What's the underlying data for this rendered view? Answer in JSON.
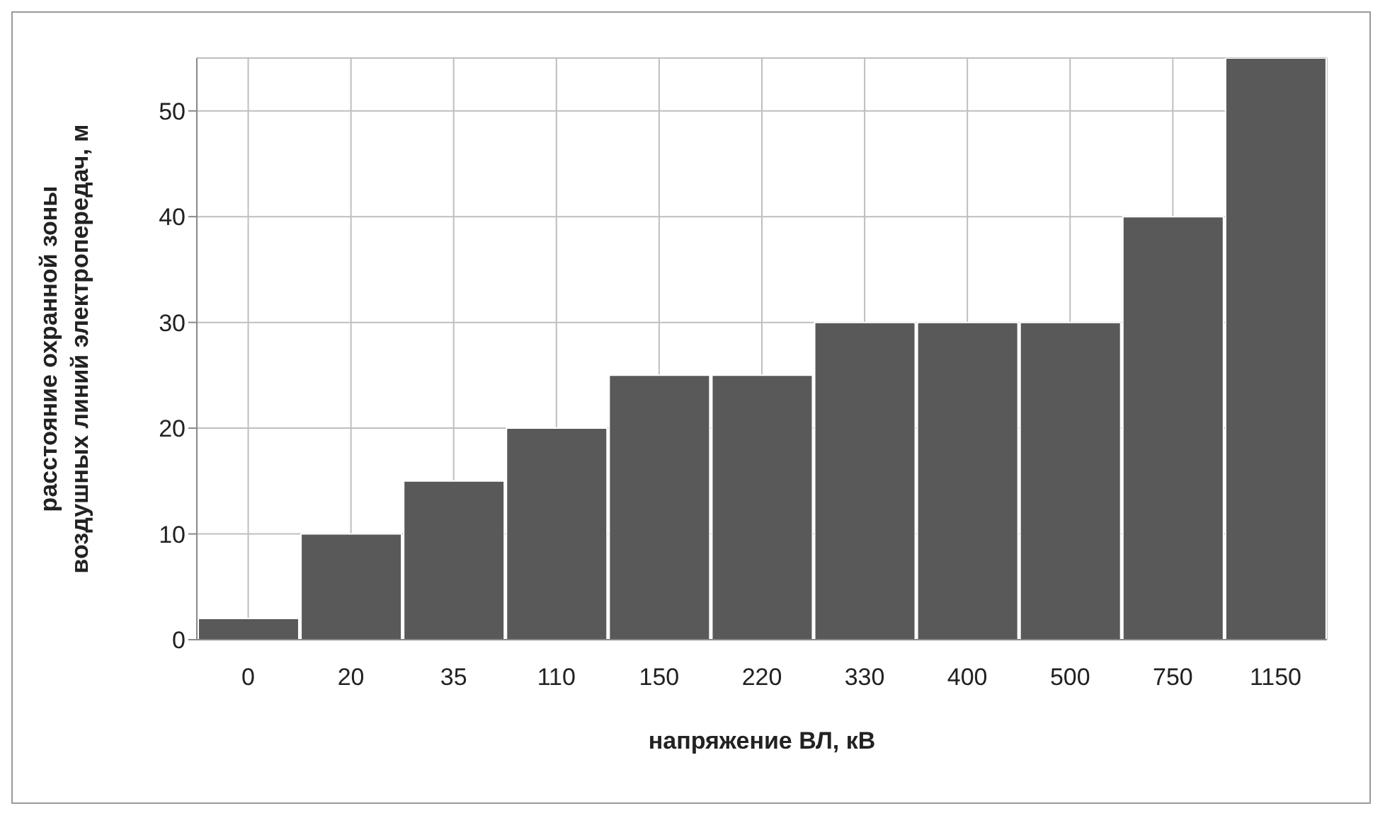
{
  "chart_data": {
    "type": "bar",
    "xlabel": "напряжение ВЛ, кВ",
    "ylabel": "расстояние охранной зоны\nвоздушных линий электропередач, м",
    "categories": [
      "0",
      "20",
      "35",
      "110",
      "150",
      "220",
      "330",
      "400",
      "500",
      "750",
      "1150"
    ],
    "values": [
      2,
      10,
      15,
      20,
      25,
      25,
      30,
      30,
      30,
      40,
      55
    ],
    "color": "#595959",
    "ylim": [
      0,
      55
    ],
    "yticks": [
      0,
      10,
      20,
      30,
      40,
      50
    ],
    "grid": true
  }
}
